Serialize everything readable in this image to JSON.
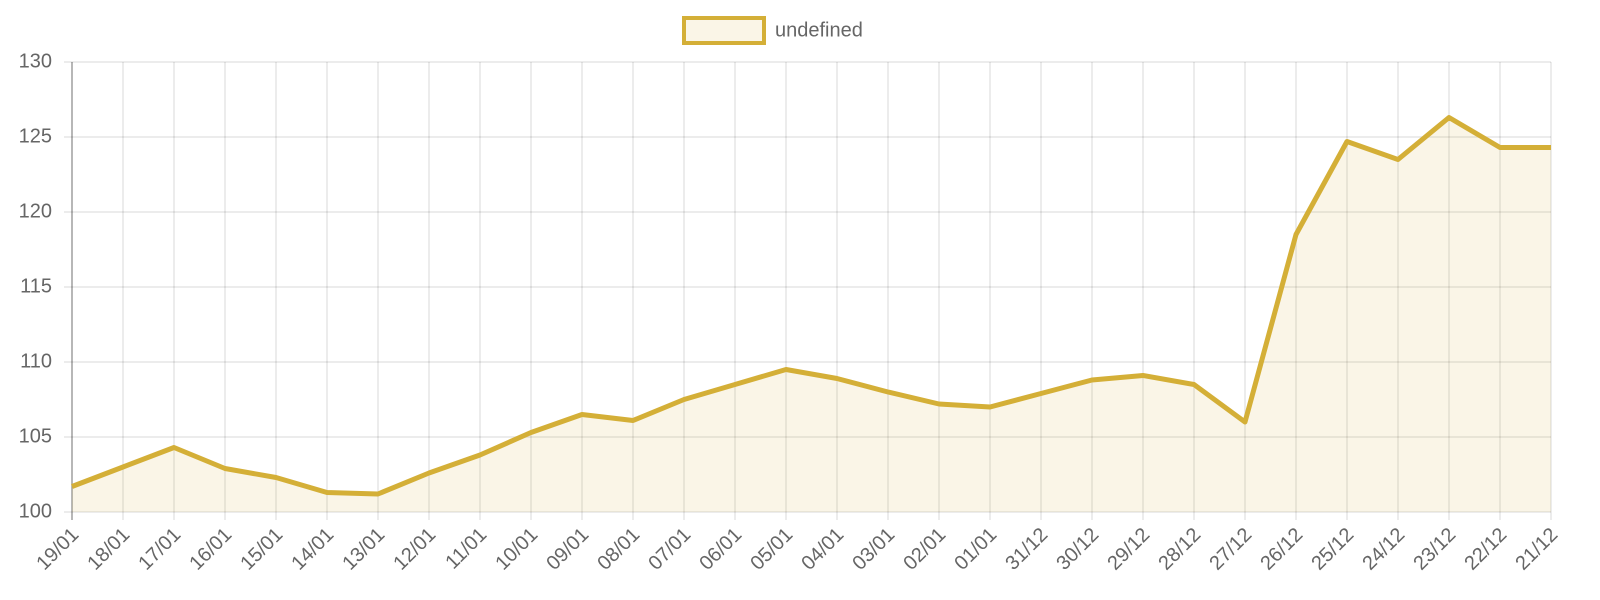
{
  "chart_data": {
    "type": "line",
    "categories": [
      "19/01",
      "18/01",
      "17/01",
      "16/01",
      "15/01",
      "14/01",
      "13/01",
      "12/01",
      "11/01",
      "10/01",
      "09/01",
      "08/01",
      "07/01",
      "06/01",
      "05/01",
      "04/01",
      "03/01",
      "02/01",
      "01/01",
      "31/12",
      "30/12",
      "29/12",
      "28/12",
      "27/12",
      "26/12",
      "25/12",
      "24/12",
      "23/12",
      "22/12",
      "21/12"
    ],
    "series": [
      {
        "name": "undefined",
        "color": "#d4af37",
        "values": [
          101.7,
          103.0,
          104.3,
          102.9,
          102.3,
          101.3,
          101.2,
          102.6,
          103.8,
          105.3,
          106.5,
          106.1,
          107.5,
          108.5,
          109.5,
          108.9,
          108.0,
          107.2,
          107.0,
          107.9,
          108.8,
          109.1,
          108.5,
          106.0,
          118.5,
          124.7,
          123.5,
          126.3,
          124.3,
          124.3
        ]
      }
    ],
    "ylim": [
      100,
      130
    ],
    "yticks": [
      100,
      105,
      110,
      115,
      120,
      125,
      130
    ],
    "grid": true,
    "fill": true
  }
}
